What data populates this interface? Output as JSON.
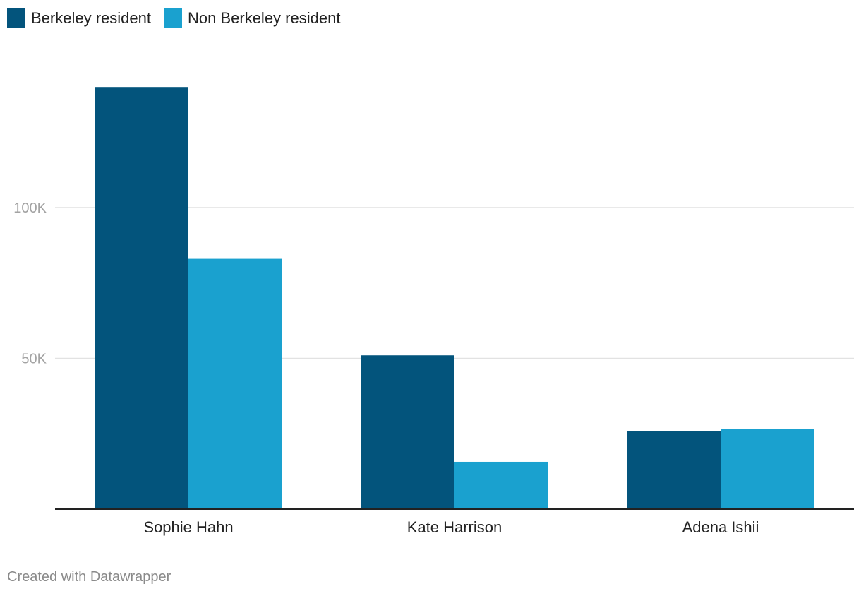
{
  "chart_data": {
    "type": "bar",
    "categories": [
      "Sophie Hahn",
      "Kate Harrison",
      "Adena Ishii"
    ],
    "series": [
      {
        "name": "Berkeley resident",
        "color": "#03547c",
        "values": [
          140000,
          51000,
          25800
        ]
      },
      {
        "name": "Non Berkeley resident",
        "color": "#1aa1cf",
        "values": [
          83000,
          15700,
          26500
        ]
      }
    ],
    "y_ticks": [
      {
        "value": 50000,
        "label": "50K"
      },
      {
        "value": 100000,
        "label": "100K"
      }
    ],
    "ylim": [
      0,
      165000
    ],
    "grid": true,
    "legend_position": "top-left"
  },
  "footer": {
    "credit": "Created with Datawrapper"
  }
}
